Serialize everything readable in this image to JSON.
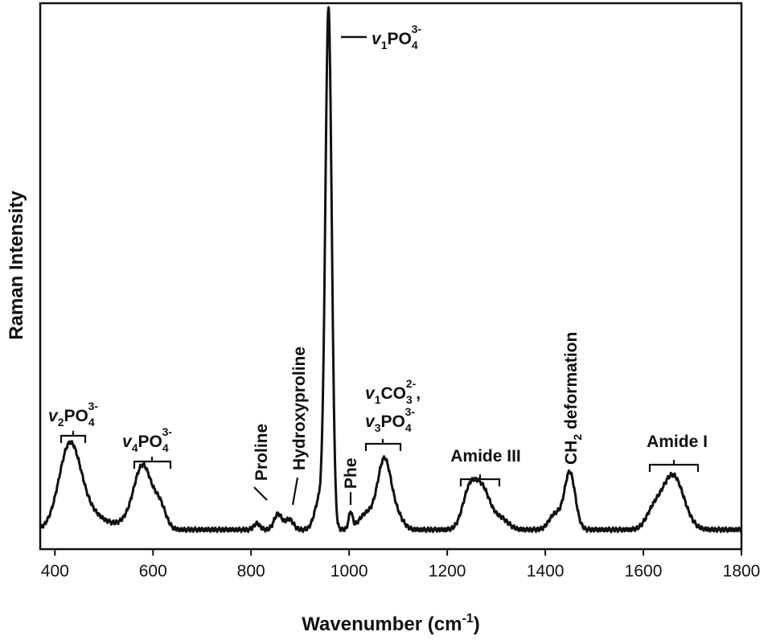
{
  "chart_data": {
    "type": "line",
    "xlabel": "Wavenumber (cm",
    "xlabel_sup": "-1",
    "xlabel_end": ")",
    "ylabel": "Raman Intensity",
    "xlim": [
      370,
      1800
    ],
    "ylim": [
      0,
      100
    ],
    "xticks": [
      400,
      600,
      800,
      1000,
      1200,
      1400,
      1600,
      1800
    ],
    "grid": false,
    "legend": "none",
    "colors": {
      "line": "#111111",
      "axis": "#111111"
    },
    "baseline": 0.5,
    "peaks": [
      [
        430,
        15.5,
        22
      ],
      [
        470,
        3,
        30
      ],
      [
        580,
        11.5,
        18
      ],
      [
        615,
        4,
        12
      ],
      [
        555,
        1.5,
        25
      ],
      [
        812,
        1.2,
        6
      ],
      [
        855,
        3,
        8
      ],
      [
        878,
        2,
        8
      ],
      [
        940,
        6,
        10
      ],
      [
        958,
        99,
        6.5
      ],
      [
        1003,
        3.2,
        4
      ],
      [
        1035,
        3,
        15
      ],
      [
        1072,
        13.5,
        14
      ],
      [
        1100,
        2,
        12
      ],
      [
        1245,
        7,
        14
      ],
      [
        1272,
        7.5,
        16
      ],
      [
        1310,
        2,
        15
      ],
      [
        1420,
        3,
        12
      ],
      [
        1450,
        11,
        11
      ],
      [
        1620,
        3,
        15
      ],
      [
        1660,
        10.5,
        22
      ]
    ],
    "annotations": {
      "v1po4": {
        "v": "v",
        "vsub": "1",
        "base": "PO",
        "sub": "4",
        "sup": "3-"
      },
      "v2po4": {
        "v": "v",
        "vsub": "2",
        "base": "PO",
        "sub": "4",
        "sup": "3-"
      },
      "v4po4": {
        "v": "v",
        "vsub": "4",
        "base": "PO",
        "sub": "4",
        "sup": "3-"
      },
      "v1co3": {
        "v": "v",
        "vsub": "1",
        "base": "CO",
        "sub": "3",
        "sup": "2-",
        "tail": ","
      },
      "v3po4": {
        "v": "v",
        "vsub": "3",
        "base": "PO",
        "sub": "4",
        "sup": "3-"
      },
      "proline": "Proline",
      "hydroxyproline": "Hydroxyproline",
      "phe": "Phe",
      "amide3": "Amide III",
      "ch2": {
        "pre": "CH",
        "sub": "2",
        "post": " deformation"
      },
      "amide1": "Amide I"
    }
  }
}
